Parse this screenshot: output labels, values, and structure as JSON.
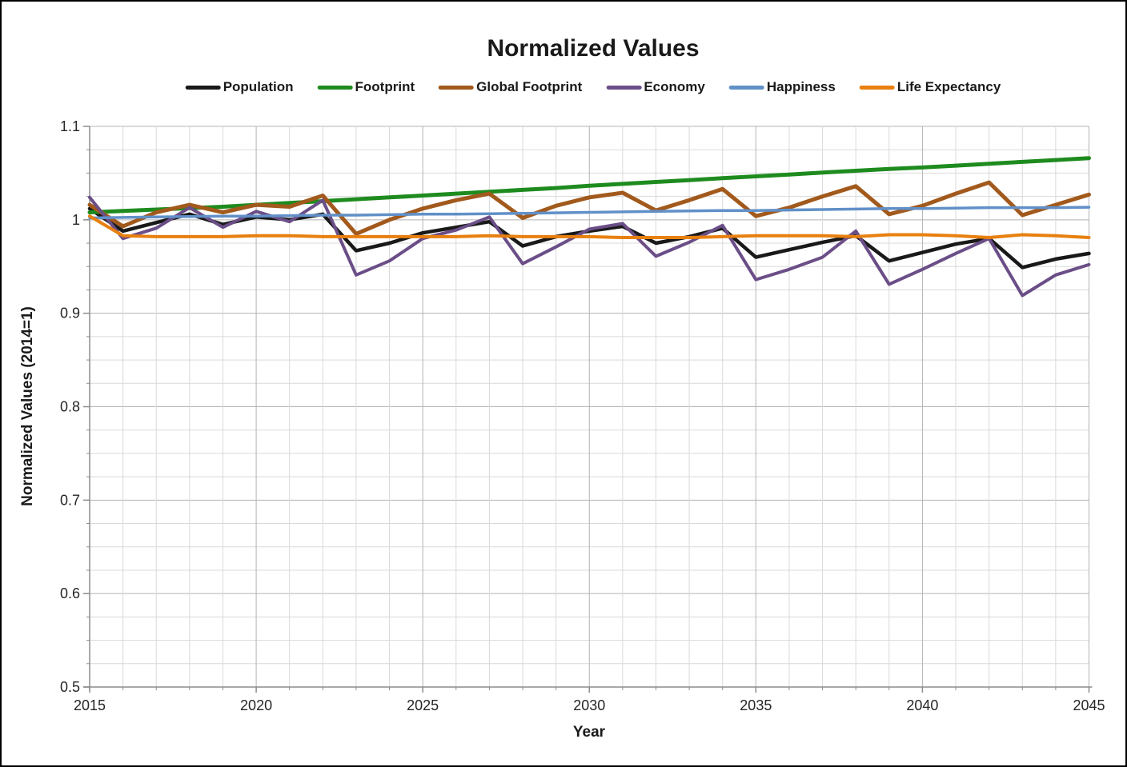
{
  "chart_data": {
    "type": "line",
    "title": "Normalized Values",
    "xlabel": "Year",
    "ylabel": "Normalized Values (2014=1)",
    "xlim": [
      2015,
      2045
    ],
    "ylim": [
      0.5,
      1.1
    ],
    "x_major_ticks": [
      2015,
      2020,
      2025,
      2030,
      2035,
      2040,
      2045
    ],
    "x_minor_step_years": 1,
    "y_major_tick_labels": [
      "0.5",
      "0.6",
      "0.7",
      "0.8",
      "0.9",
      "1",
      "1.1"
    ],
    "y_major_step": 0.1,
    "y_minor_step": 0.025,
    "grid": "major-and-minor, both axes",
    "legend_position": "top",
    "x": [
      2015,
      2016,
      2017,
      2018,
      2019,
      2020,
      2021,
      2022,
      2023,
      2024,
      2025,
      2026,
      2027,
      2028,
      2029,
      2030,
      2031,
      2032,
      2033,
      2034,
      2035,
      2036,
      2037,
      2038,
      2039,
      2040,
      2041,
      2042,
      2043,
      2044,
      2045
    ],
    "series": [
      {
        "name": "Population",
        "color": "#191919",
        "values": [
          1.012,
          0.988,
          0.997,
          1.006,
          0.995,
          1.003,
          1.0,
          1.006,
          0.967,
          0.975,
          0.986,
          0.992,
          0.998,
          0.972,
          0.982,
          0.988,
          0.993,
          0.975,
          0.982,
          0.991,
          0.96,
          0.968,
          0.976,
          0.983,
          0.956,
          0.965,
          0.974,
          0.98,
          0.949,
          0.958,
          0.964
        ]
      },
      {
        "name": "Footprint",
        "color": "#1e8b1e",
        "values": [
          1.008,
          1.0095,
          1.011,
          1.0125,
          1.014,
          1.016,
          1.018,
          1.02,
          1.022,
          1.024,
          1.026,
          1.028,
          1.03,
          1.032,
          1.034,
          1.0365,
          1.0385,
          1.0405,
          1.0425,
          1.0445,
          1.0465,
          1.0485,
          1.0505,
          1.0525,
          1.0545,
          1.056,
          1.058,
          1.06,
          1.062,
          1.064,
          1.066
        ]
      },
      {
        "name": "Global Footprint",
        "color": "#a2591c",
        "values": [
          1.016,
          0.993,
          1.008,
          1.016,
          1.008,
          1.016,
          1.014,
          1.026,
          0.985,
          1.0,
          1.012,
          1.021,
          1.028,
          1.002,
          1.015,
          1.024,
          1.029,
          1.01,
          1.021,
          1.033,
          1.004,
          1.013,
          1.025,
          1.036,
          1.006,
          1.015,
          1.028,
          1.04,
          1.005,
          1.016,
          1.027
        ]
      },
      {
        "name": "Economy",
        "color": "#6b4e87",
        "values": [
          1.024,
          0.98,
          0.991,
          1.013,
          0.992,
          1.009,
          0.998,
          1.021,
          0.941,
          0.956,
          0.98,
          0.989,
          1.003,
          0.953,
          0.971,
          0.99,
          0.996,
          0.961,
          0.976,
          0.994,
          0.936,
          0.947,
          0.96,
          0.988,
          0.931,
          0.947,
          0.964,
          0.98,
          0.919,
          0.941,
          0.952
        ]
      },
      {
        "name": "Happiness",
        "color": "#6190c8",
        "values": [
          1.002,
          1.0025,
          1.003,
          1.0035,
          1.004,
          1.004,
          1.0045,
          1.005,
          1.005,
          1.0055,
          1.006,
          1.006,
          1.0065,
          1.007,
          1.0075,
          1.008,
          1.0085,
          1.009,
          1.0095,
          1.01,
          1.01,
          1.0105,
          1.011,
          1.0115,
          1.012,
          1.012,
          1.0125,
          1.013,
          1.013,
          1.013,
          1.0135
        ]
      },
      {
        "name": "Life Expectancy",
        "color": "#e8800f",
        "values": [
          1.004,
          0.983,
          0.982,
          0.982,
          0.982,
          0.983,
          0.983,
          0.982,
          0.982,
          0.982,
          0.982,
          0.982,
          0.983,
          0.982,
          0.982,
          0.982,
          0.981,
          0.981,
          0.981,
          0.982,
          0.983,
          0.983,
          0.983,
          0.982,
          0.984,
          0.984,
          0.983,
          0.981,
          0.984,
          0.983,
          0.981
        ]
      }
    ]
  }
}
